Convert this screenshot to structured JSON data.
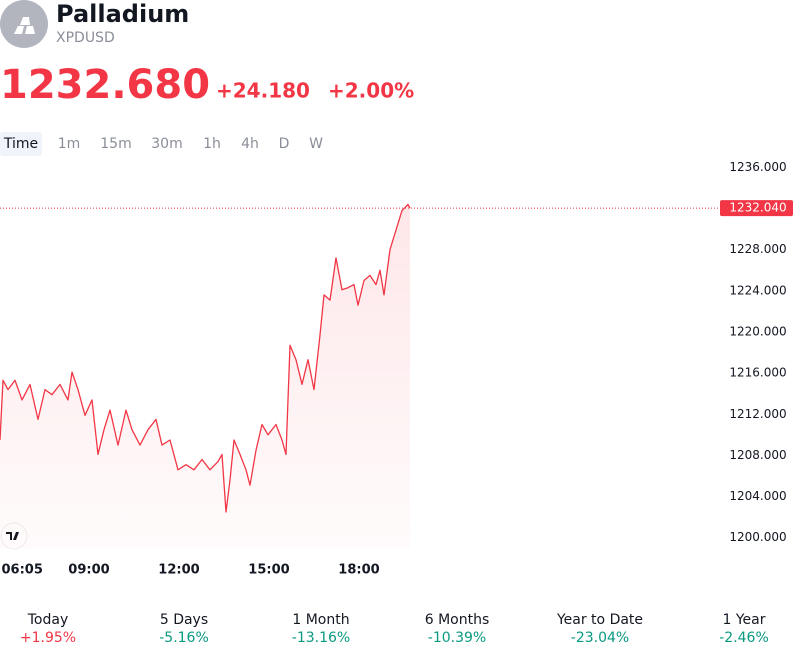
{
  "header": {
    "title": "Palladium",
    "symbol": "XPDUSD",
    "price": "1232.680",
    "change": "+24.180",
    "change_pct": "+2.00%"
  },
  "intervals": [
    "Time",
    "1m",
    "15m",
    "30m",
    "1h",
    "4h",
    "D",
    "W"
  ],
  "chart_data": {
    "type": "line",
    "color": "#f23645",
    "x": [
      362,
      368,
      378,
      392,
      406,
      422,
      438,
      452,
      466,
      482,
      498,
      506,
      518,
      532,
      546,
      558,
      570,
      582,
      598,
      614,
      626,
      642,
      658,
      674,
      686,
      702,
      718,
      734,
      750,
      766,
      782,
      798,
      806,
      814,
      822,
      830,
      842,
      854,
      862,
      874,
      886,
      898,
      914,
      926,
      934,
      942,
      954,
      966,
      978,
      990,
      1002,
      1010,
      1022,
      1034,
      1046,
      1058,
      1070,
      1078,
      1090,
      1102,
      1114,
      1122,
      1130,
      1142,
      1154,
      1166,
      1178,
      1182
    ],
    "values": [
      1209.5,
      1215.3,
      1214.4,
      1215.3,
      1213.4,
      1214.9,
      1211.5,
      1214.4,
      1213.9,
      1214.9,
      1213.4,
      1216.1,
      1214.4,
      1211.9,
      1213.4,
      1208.1,
      1210.5,
      1212.4,
      1209.0,
      1212.4,
      1210.5,
      1209.0,
      1210.5,
      1211.5,
      1209.0,
      1209.5,
      1206.6,
      1207.1,
      1206.6,
      1207.6,
      1206.6,
      1207.4,
      1208.1,
      1202.5,
      1205.6,
      1209.5,
      1208.1,
      1206.6,
      1205.1,
      1208.5,
      1211.0,
      1210.0,
      1211.0,
      1209.5,
      1208.1,
      1218.7,
      1217.3,
      1214.9,
      1217.3,
      1214.4,
      1219.7,
      1223.6,
      1223.1,
      1227.2,
      1224.1,
      1224.3,
      1224.6,
      1222.6,
      1225.0,
      1225.5,
      1224.6,
      1226.0,
      1223.6,
      1228.0,
      1229.9,
      1231.8,
      1232.4,
      1232.04
    ],
    "xlim": [
      362,
      1792
    ],
    "xticks": [
      {
        "value": 365,
        "label": "06:05"
      },
      {
        "value": 540,
        "label": "09:00"
      },
      {
        "value": 720,
        "label": "12:00"
      },
      {
        "value": 900,
        "label": "15:00"
      },
      {
        "value": 1080,
        "label": "18:00"
      }
    ],
    "ylim": [
      1199,
      1237.2
    ],
    "yticks": [
      {
        "value": 1200,
        "label": "1200.000"
      },
      {
        "value": 1204,
        "label": "1204.000"
      },
      {
        "value": 1208,
        "label": "1208.000"
      },
      {
        "value": 1212,
        "label": "1212.000"
      },
      {
        "value": 1216,
        "label": "1216.000"
      },
      {
        "value": 1220,
        "label": "1220.000"
      },
      {
        "value": 1224,
        "label": "1224.000"
      },
      {
        "value": 1228,
        "label": "1228.000"
      },
      {
        "value": 1232,
        "label": "1232.000"
      },
      {
        "value": 1236,
        "label": "1236.000"
      }
    ],
    "price_line": {
      "value": 1232.04,
      "label": "1232.040"
    }
  },
  "performance": [
    {
      "period": "Today",
      "change": "+1.95%"
    },
    {
      "period": "5 Days",
      "change": "-5.16%"
    },
    {
      "period": "1 Month",
      "change": "-13.16%"
    },
    {
      "period": "6 Months",
      "change": "-10.39%"
    },
    {
      "period": "Year to Date",
      "change": "-23.04%"
    },
    {
      "period": "1 Year",
      "change": "-2.46%"
    }
  ]
}
